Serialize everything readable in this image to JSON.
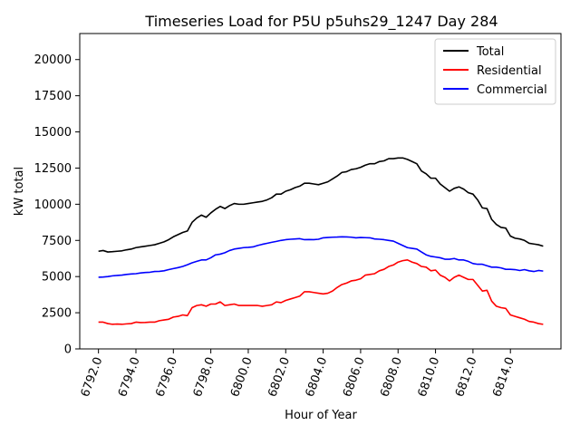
{
  "chart_data": {
    "type": "line",
    "title": "Timeseries Load for P5U p5uhs29_1247  Day 284",
    "xlabel": "Hour of Year",
    "ylabel": "kW total",
    "xlim": [
      6791.0,
      6816.7
    ],
    "ylim": [
      0,
      21800
    ],
    "xticks": [
      6792,
      6794,
      6796,
      6798,
      6800,
      6802,
      6804,
      6806,
      6808,
      6810,
      6812,
      6814
    ],
    "xtick_labels": [
      "6792.0",
      "6794.0",
      "6796.0",
      "6798.0",
      "6800.0",
      "6802.0",
      "6804.0",
      "6806.0",
      "6808.0",
      "6810.0",
      "6812.0",
      "6814.0"
    ],
    "yticks": [
      0,
      2500,
      5000,
      7500,
      10000,
      12500,
      15000,
      17500,
      20000
    ],
    "ytick_labels": [
      "0",
      "2500",
      "5000",
      "7500",
      "10000",
      "12500",
      "15000",
      "17500",
      "20000"
    ],
    "legend_position": "top-right",
    "x": [
      6792.0,
      6792.25,
      6792.5,
      6792.75,
      6793.0,
      6793.25,
      6793.5,
      6793.75,
      6794.0,
      6794.25,
      6794.5,
      6794.75,
      6795.0,
      6795.25,
      6795.5,
      6795.75,
      6796.0,
      6796.25,
      6796.5,
      6796.75,
      6797.0,
      6797.25,
      6797.5,
      6797.75,
      6798.0,
      6798.25,
      6798.5,
      6798.75,
      6799.0,
      6799.25,
      6799.5,
      6799.75,
      6800.0,
      6800.25,
      6800.5,
      6800.75,
      6801.0,
      6801.25,
      6801.5,
      6801.75,
      6802.0,
      6802.25,
      6802.5,
      6802.75,
      6803.0,
      6803.25,
      6803.5,
      6803.75,
      6804.0,
      6804.25,
      6804.5,
      6804.75,
      6805.0,
      6805.25,
      6805.5,
      6805.75,
      6806.0,
      6806.25,
      6806.5,
      6806.75,
      6807.0,
      6807.25,
      6807.5,
      6807.75,
      6808.0,
      6808.25,
      6808.5,
      6808.75,
      6809.0,
      6809.25,
      6809.5,
      6809.75,
      6810.0,
      6810.25,
      6810.5,
      6810.75,
      6811.0,
      6811.25,
      6811.5,
      6811.75,
      6812.0,
      6812.25,
      6812.5,
      6812.75,
      6813.0,
      6813.25,
      6813.5,
      6813.75,
      6814.0,
      6814.25,
      6814.5,
      6814.75,
      6815.0,
      6815.25,
      6815.5,
      6815.75
    ],
    "series": [
      {
        "name": "Total",
        "color": "#000000",
        "values": [
          6750,
          6800,
          6700,
          6720,
          6750,
          6780,
          6850,
          6900,
          7000,
          7050,
          7100,
          7150,
          7200,
          7300,
          7400,
          7550,
          7750,
          7900,
          8050,
          8150,
          8750,
          9050,
          9250,
          9100,
          9400,
          9650,
          9850,
          9700,
          9900,
          10050,
          10000,
          10000,
          10050,
          10100,
          10150,
          10200,
          10300,
          10450,
          10700,
          10700,
          10900,
          11000,
          11150,
          11250,
          11450,
          11450,
          11400,
          11350,
          11450,
          11550,
          11750,
          11950,
          12200,
          12250,
          12400,
          12450,
          12550,
          12700,
          12800,
          12800,
          12950,
          13000,
          13150,
          13150,
          13200,
          13200,
          13100,
          12950,
          12800,
          12300,
          12100,
          11800,
          11800,
          11400,
          11150,
          10900,
          11100,
          11200,
          11050,
          10800,
          10700,
          10300,
          9750,
          9700,
          8950,
          8600,
          8400,
          8350,
          7800,
          7650,
          7600,
          7500,
          7300,
          7250,
          7200,
          7100
        ]
      },
      {
        "name": "Residential",
        "color": "#ff0000",
        "values": [
          1850,
          1850,
          1750,
          1700,
          1720,
          1700,
          1730,
          1750,
          1850,
          1820,
          1830,
          1850,
          1850,
          1950,
          2000,
          2050,
          2200,
          2250,
          2350,
          2300,
          2850,
          3000,
          3050,
          2950,
          3100,
          3100,
          3250,
          3000,
          3050,
          3100,
          3000,
          3000,
          3000,
          3000,
          3000,
          2950,
          3000,
          3050,
          3250,
          3200,
          3350,
          3450,
          3550,
          3650,
          3950,
          3950,
          3900,
          3850,
          3800,
          3850,
          4000,
          4250,
          4450,
          4550,
          4700,
          4750,
          4850,
          5100,
          5150,
          5200,
          5400,
          5500,
          5700,
          5800,
          6000,
          6100,
          6150,
          6000,
          5900,
          5700,
          5650,
          5400,
          5450,
          5100,
          4950,
          4700,
          4950,
          5100,
          4950,
          4800,
          4800,
          4400,
          4000,
          4050,
          3300,
          2950,
          2850,
          2800,
          2350,
          2250,
          2150,
          2050,
          1900,
          1850,
          1750,
          1700
        ]
      },
      {
        "name": "Commercial",
        "color": "#0000ff",
        "values": [
          4950,
          4970,
          5000,
          5050,
          5080,
          5100,
          5150,
          5180,
          5200,
          5250,
          5280,
          5300,
          5350,
          5360,
          5400,
          5480,
          5550,
          5620,
          5700,
          5820,
          5950,
          6050,
          6150,
          6150,
          6300,
          6500,
          6550,
          6650,
          6800,
          6900,
          6950,
          7000,
          7020,
          7050,
          7150,
          7230,
          7300,
          7370,
          7430,
          7500,
          7550,
          7580,
          7600,
          7620,
          7550,
          7560,
          7550,
          7580,
          7680,
          7700,
          7720,
          7730,
          7750,
          7740,
          7720,
          7680,
          7700,
          7690,
          7680,
          7600,
          7580,
          7550,
          7500,
          7450,
          7300,
          7150,
          7000,
          6950,
          6900,
          6700,
          6500,
          6400,
          6350,
          6300,
          6200,
          6200,
          6250,
          6150,
          6150,
          6050,
          5900,
          5850,
          5850,
          5750,
          5650,
          5650,
          5600,
          5500,
          5500,
          5480,
          5420,
          5480,
          5400,
          5350,
          5420,
          5380
        ]
      }
    ]
  }
}
